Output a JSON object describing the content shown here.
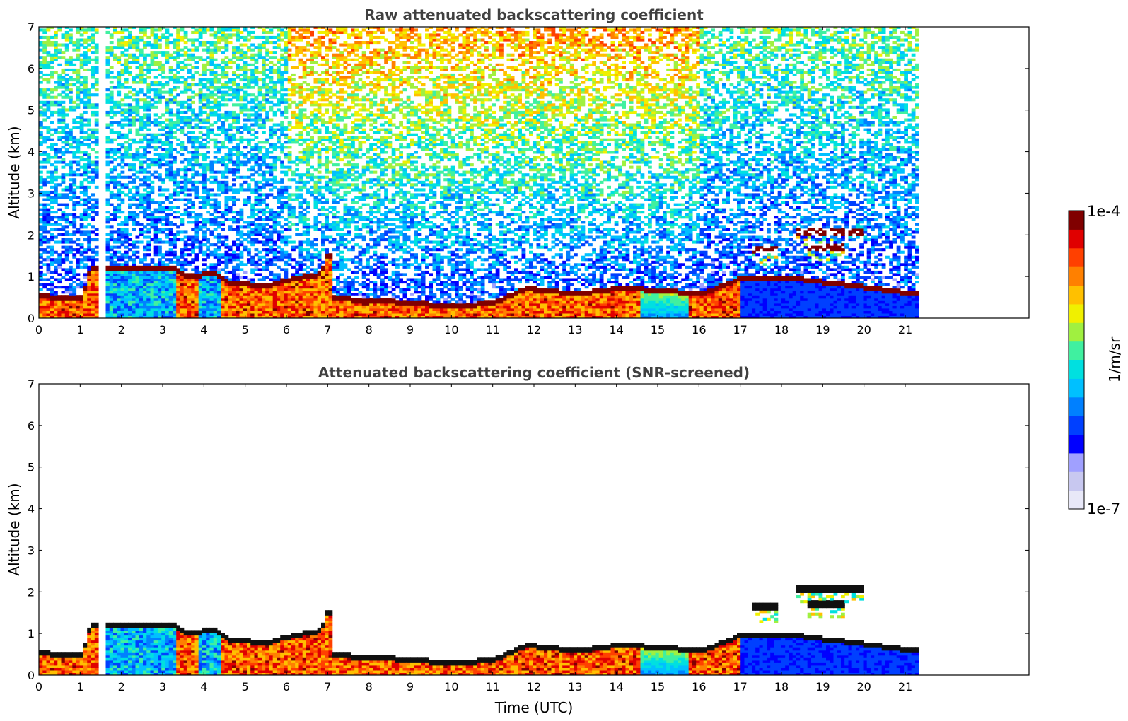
{
  "chart_data": [
    {
      "type": "heatmap",
      "title": "Raw attenuated backscattering coefficient",
      "ylabel": "Altitude (km)",
      "xlabel": "",
      "xlim": [
        0,
        24
      ],
      "ylim": [
        0,
        7
      ],
      "x_ticks": [
        "0",
        "1",
        "2",
        "3",
        "4",
        "5",
        "6",
        "7",
        "8",
        "9",
        "10",
        "11",
        "12",
        "13",
        "14",
        "15",
        "16",
        "17",
        "18",
        "19",
        "20",
        "21"
      ],
      "y_ticks": [
        "0",
        "1",
        "2",
        "3",
        "4",
        "5",
        "6",
        "7"
      ],
      "data_end_time": 21.3,
      "missing_data_interval": [
        1.45,
        1.55
      ],
      "grid": false,
      "noise_field": {
        "description_level": "raw",
        "max_altitude": 7,
        "upper_levels": "noisy, increasing toward red near 7 km between 6 and 16 UTC"
      },
      "aerosol_layer_top_km": [
        {
          "t": 0.0,
          "z": 0.55
        },
        {
          "t": 1.0,
          "z": 0.5
        },
        {
          "t": 1.2,
          "z": 1.2
        },
        {
          "t": 2.0,
          "z": 1.25
        },
        {
          "t": 3.3,
          "z": 1.2
        },
        {
          "t": 3.5,
          "z": 1.05
        },
        {
          "t": 4.2,
          "z": 1.1
        },
        {
          "t": 4.5,
          "z": 0.9
        },
        {
          "t": 5.5,
          "z": 0.8
        },
        {
          "t": 6.0,
          "z": 0.95
        },
        {
          "t": 6.8,
          "z": 1.1
        },
        {
          "t": 7.0,
          "z": 1.8
        },
        {
          "t": 7.1,
          "z": 0.5
        },
        {
          "t": 9.0,
          "z": 0.4
        },
        {
          "t": 10.0,
          "z": 0.3
        },
        {
          "t": 11.0,
          "z": 0.4
        },
        {
          "t": 11.8,
          "z": 0.75
        },
        {
          "t": 13.0,
          "z": 0.6
        },
        {
          "t": 14.0,
          "z": 0.75
        },
        {
          "t": 15.0,
          "z": 0.7
        },
        {
          "t": 16.0,
          "z": 0.6
        },
        {
          "t": 17.0,
          "z": 1.0
        },
        {
          "t": 18.2,
          "z": 1.0
        },
        {
          "t": 21.3,
          "z": 0.6
        }
      ],
      "elevated_layers": [
        {
          "t_start": 17.2,
          "t_end": 17.9,
          "z": 1.6
        },
        {
          "t_start": 18.3,
          "t_end": 19.9,
          "z": 2.05
        },
        {
          "t_start": 18.6,
          "t_end": 19.5,
          "z": 1.7
        }
      ]
    },
    {
      "type": "heatmap",
      "title": "Attenuated backscattering coefficient (SNR-screened)",
      "ylabel": "Altitude (km)",
      "xlabel": "Time (UTC)",
      "xlim": [
        0,
        24
      ],
      "ylim": [
        0,
        7
      ],
      "x_ticks": [
        "0",
        "1",
        "2",
        "3",
        "4",
        "5",
        "6",
        "7",
        "8",
        "9",
        "10",
        "11",
        "12",
        "13",
        "14",
        "15",
        "16",
        "17",
        "18",
        "19",
        "20",
        "21"
      ],
      "y_ticks": [
        "0",
        "1",
        "2",
        "3",
        "4",
        "5",
        "6",
        "7"
      ],
      "data_end_time": 21.3,
      "missing_data_interval": [
        1.45,
        1.55
      ],
      "grid": false,
      "noise_field": {
        "description_level": "screened",
        "max_altitude": 0
      }
    }
  ],
  "colorbar": {
    "label": "1/m/sr",
    "max_label": "1e-4",
    "min_label": "1e-7",
    "scale": "log",
    "colormap": [
      "#e8e8f8",
      "#c8c8f0",
      "#a0a0ff",
      "#0000ff",
      "#0040ff",
      "#0080ff",
      "#00c0ff",
      "#00e0e0",
      "#40f0a0",
      "#a0f040",
      "#f0f000",
      "#ffc000",
      "#ff8000",
      "#ff4000",
      "#e00000",
      "#800000"
    ]
  }
}
